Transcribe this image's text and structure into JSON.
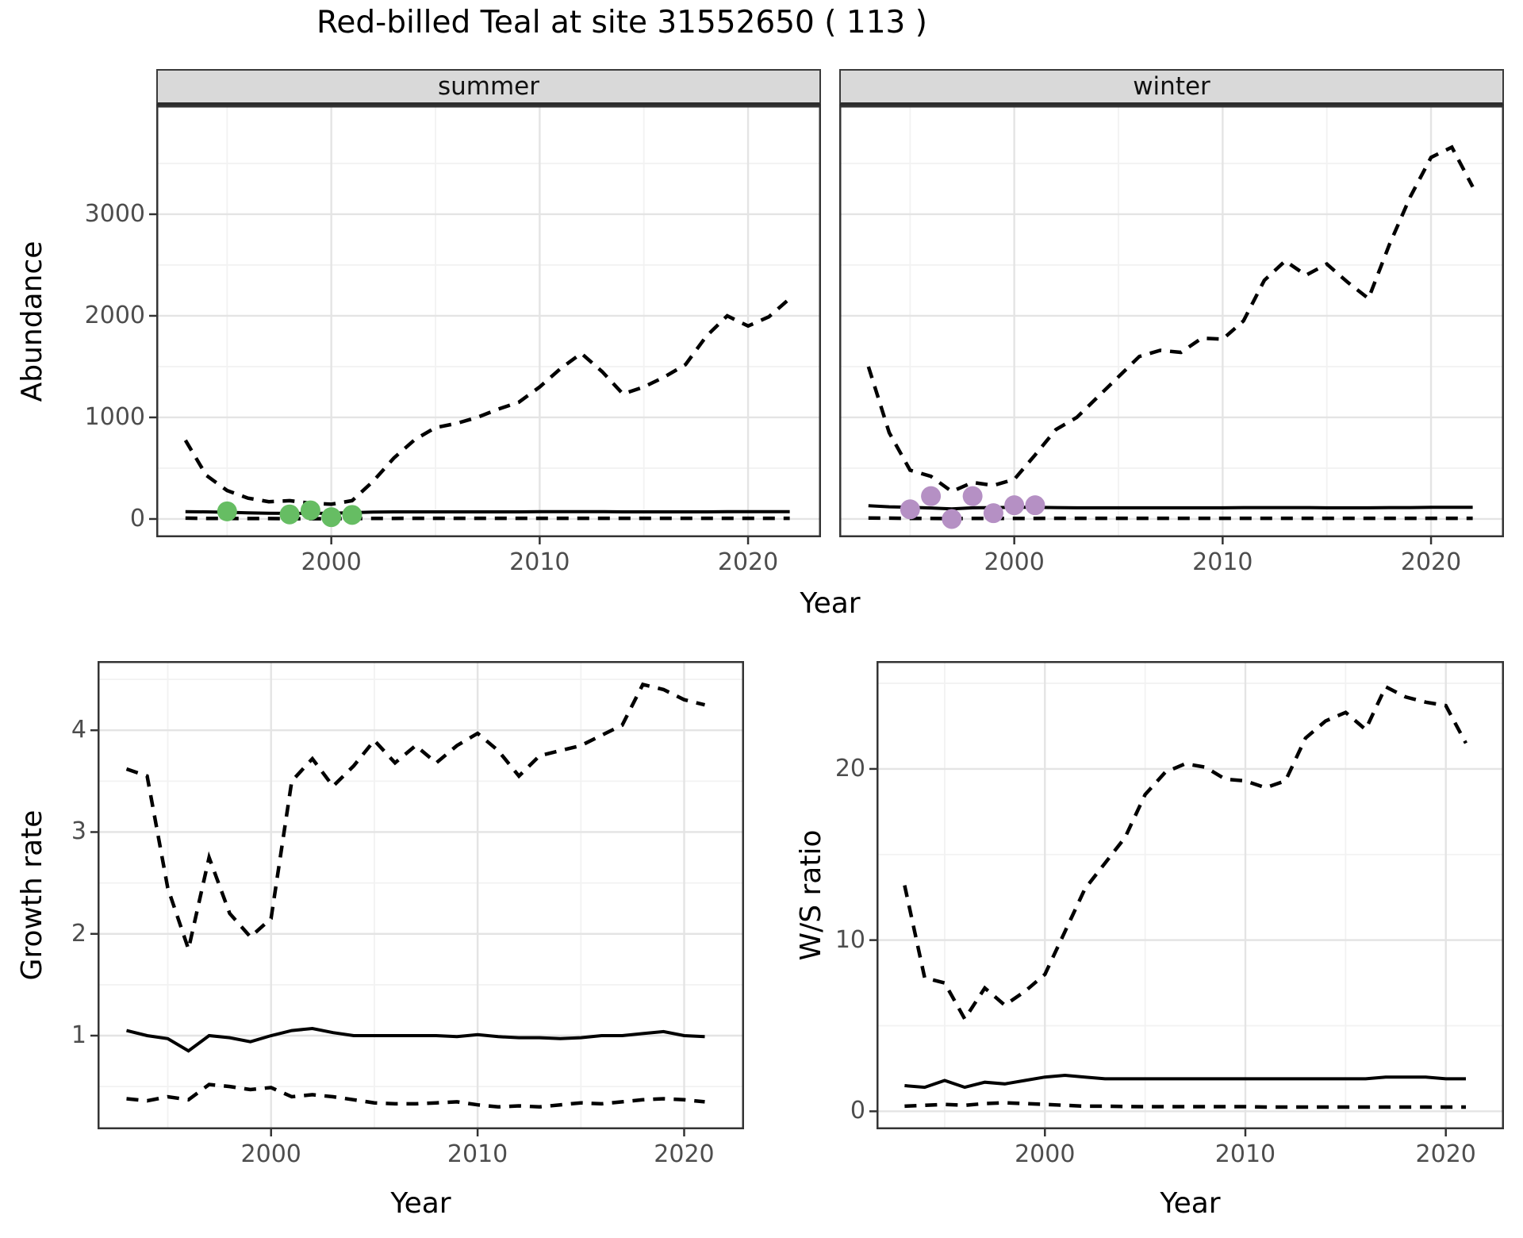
{
  "title": "Red-billed Teal at site 31552650 ( 113 )",
  "colors": {
    "line": "#000000",
    "strip_bg": "#d9d9d9",
    "grid_major": "#e4e4e4",
    "grid_minor": "#f2f2f2",
    "axis_text": "#4d4d4d",
    "panel_border": "#343434",
    "summer_point": "#66bd63",
    "winter_point": "#b590c4"
  },
  "top_row": {
    "ylabel": "Abundance",
    "xlabel": "Year"
  },
  "chart_data": [
    {
      "type": "line",
      "facet": "summer",
      "xlabel": "Year",
      "ylabel": "Abundance",
      "xlim": [
        1991.6,
        2023.5
      ],
      "ylim": [
        -180,
        4070
      ],
      "x_ticks": [
        2000,
        2010,
        2020
      ],
      "y_ticks": [
        0,
        1000,
        2000,
        3000
      ],
      "x": [
        1993,
        1994,
        1995,
        1996,
        1997,
        1998,
        1999,
        2000,
        2001,
        2002,
        2003,
        2004,
        2005,
        2006,
        2007,
        2008,
        2009,
        2010,
        2011,
        2012,
        2013,
        2014,
        2015,
        2016,
        2017,
        2018,
        2019,
        2020,
        2021,
        2022
      ],
      "series": [
        {
          "name": "upper-ci",
          "linetype": "dashed",
          "values": [
            775,
            430,
            280,
            205,
            170,
            180,
            155,
            145,
            180,
            370,
            600,
            780,
            900,
            940,
            1000,
            1080,
            1150,
            1300,
            1480,
            1630,
            1450,
            1230,
            1300,
            1400,
            1520,
            1800,
            2000,
            1900,
            1990,
            2170
          ]
        },
        {
          "name": "median",
          "linetype": "solid",
          "values": [
            72,
            70,
            66,
            60,
            57,
            55,
            55,
            57,
            62,
            68,
            70,
            70,
            70,
            70,
            70,
            70,
            70,
            72,
            72,
            72,
            72,
            70,
            70,
            70,
            70,
            70,
            72,
            72,
            72,
            72
          ]
        },
        {
          "name": "lower-ci",
          "linetype": "dashed",
          "values": [
            8,
            6,
            5,
            4,
            4,
            3,
            3,
            3,
            4,
            5,
            6,
            7,
            7,
            7,
            7,
            7,
            7,
            7,
            7,
            7,
            7,
            7,
            7,
            7,
            7,
            7,
            7,
            7,
            7,
            7
          ]
        }
      ],
      "points": {
        "name": "observed-count",
        "color": "#66bd63",
        "x": [
          1995,
          1998,
          1999,
          2000,
          2001
        ],
        "y": [
          75,
          45,
          85,
          18,
          40
        ]
      }
    },
    {
      "type": "line",
      "facet": "winter",
      "xlabel": "Year",
      "ylabel": "Abundance",
      "xlim": [
        1991.6,
        2023.5
      ],
      "ylim": [
        -180,
        4070
      ],
      "x_ticks": [
        2000,
        2010,
        2020
      ],
      "y_ticks": [
        0,
        1000,
        2000,
        3000
      ],
      "x": [
        1993,
        1994,
        1995,
        1996,
        1997,
        1998,
        1999,
        2000,
        2001,
        2002,
        2003,
        2004,
        2005,
        2006,
        2007,
        2008,
        2009,
        2010,
        2011,
        2012,
        2013,
        2014,
        2015,
        2016,
        2017,
        2018,
        2019,
        2020,
        2021,
        2022
      ],
      "series": [
        {
          "name": "upper-ci",
          "linetype": "dashed",
          "values": [
            1500,
            850,
            480,
            420,
            270,
            360,
            330,
            390,
            630,
            880,
            1000,
            1200,
            1400,
            1600,
            1660,
            1640,
            1780,
            1770,
            1950,
            2350,
            2540,
            2400,
            2510,
            2330,
            2170,
            2700,
            3170,
            3560,
            3660,
            3270
          ]
        },
        {
          "name": "median",
          "linetype": "solid",
          "values": [
            130,
            120,
            115,
            108,
            100,
            110,
            112,
            115,
            115,
            112,
            110,
            110,
            110,
            110,
            110,
            110,
            110,
            110,
            112,
            112,
            112,
            112,
            110,
            110,
            110,
            112,
            112,
            115,
            115,
            115
          ]
        },
        {
          "name": "lower-ci",
          "linetype": "dashed",
          "values": [
            10,
            8,
            6,
            5,
            4,
            5,
            5,
            6,
            6,
            7,
            7,
            7,
            7,
            7,
            7,
            7,
            7,
            7,
            7,
            7,
            7,
            7,
            7,
            7,
            7,
            7,
            7,
            7,
            7,
            7
          ]
        }
      ],
      "points": {
        "name": "observed-count",
        "color": "#b590c4",
        "x": [
          1995,
          1996,
          1997,
          1998,
          1999,
          2000,
          2001
        ],
        "y": [
          95,
          225,
          0,
          225,
          57,
          135,
          135
        ]
      }
    },
    {
      "type": "line",
      "facet": "",
      "xlabel": "Year",
      "ylabel": "Growth rate",
      "xlim": [
        1991.6,
        2022.9
      ],
      "ylim": [
        0.08,
        4.68
      ],
      "x_ticks": [
        2000,
        2010,
        2020
      ],
      "y_ticks": [
        1,
        2,
        3,
        4
      ],
      "x": [
        1993,
        1994,
        1995,
        1996,
        1997,
        1998,
        1999,
        2000,
        2001,
        2002,
        2003,
        2004,
        2005,
        2006,
        2007,
        2008,
        2009,
        2010,
        2011,
        2012,
        2013,
        2014,
        2015,
        2016,
        2017,
        2018,
        2019,
        2020,
        2021
      ],
      "series": [
        {
          "name": "upper-ci",
          "linetype": "dashed",
          "values": [
            3.62,
            3.55,
            2.45,
            1.85,
            2.75,
            2.2,
            1.97,
            2.15,
            3.5,
            3.72,
            3.45,
            3.65,
            3.9,
            3.68,
            3.85,
            3.68,
            3.85,
            3.97,
            3.8,
            3.55,
            3.75,
            3.8,
            3.85,
            3.95,
            4.05,
            4.45,
            4.4,
            4.3,
            4.25
          ]
        },
        {
          "name": "median",
          "linetype": "solid",
          "values": [
            1.05,
            1.0,
            0.97,
            0.85,
            1.0,
            0.98,
            0.94,
            1.0,
            1.05,
            1.07,
            1.03,
            1.0,
            1.0,
            1.0,
            1.0,
            1.0,
            0.99,
            1.01,
            0.99,
            0.98,
            0.98,
            0.97,
            0.98,
            1.0,
            1.0,
            1.02,
            1.04,
            1.0,
            0.99
          ]
        },
        {
          "name": "lower-ci",
          "linetype": "dashed",
          "values": [
            0.38,
            0.36,
            0.4,
            0.37,
            0.52,
            0.5,
            0.47,
            0.49,
            0.4,
            0.42,
            0.4,
            0.37,
            0.34,
            0.33,
            0.33,
            0.34,
            0.35,
            0.32,
            0.3,
            0.31,
            0.3,
            0.32,
            0.34,
            0.33,
            0.35,
            0.37,
            0.38,
            0.37,
            0.35
          ]
        }
      ],
      "points": null
    },
    {
      "type": "line",
      "facet": "",
      "xlabel": "Year",
      "ylabel": "W/S ratio",
      "xlim": [
        1991.6,
        2022.9
      ],
      "ylim": [
        -1.05,
        26.3
      ],
      "x_ticks": [
        2000,
        2010,
        2020
      ],
      "y_ticks": [
        0,
        10,
        20
      ],
      "x": [
        1993,
        1994,
        1995,
        1996,
        1997,
        1998,
        1999,
        2000,
        2001,
        2002,
        2003,
        2004,
        2005,
        2006,
        2007,
        2008,
        2009,
        2010,
        2011,
        2012,
        2013,
        2014,
        2015,
        2016,
        2017,
        2018,
        2019,
        2020,
        2021
      ],
      "series": [
        {
          "name": "upper-ci",
          "linetype": "dashed",
          "values": [
            13.2,
            7.8,
            7.5,
            5.4,
            7.2,
            6.2,
            7.0,
            8.0,
            10.5,
            13.0,
            14.5,
            16.0,
            18.5,
            19.8,
            20.3,
            20.1,
            19.4,
            19.3,
            18.9,
            19.3,
            21.8,
            22.8,
            23.3,
            22.3,
            24.8,
            24.2,
            23.9,
            23.7,
            21.5
          ]
        },
        {
          "name": "median",
          "linetype": "solid",
          "values": [
            1.5,
            1.4,
            1.8,
            1.4,
            1.7,
            1.6,
            1.8,
            2.0,
            2.1,
            2.0,
            1.9,
            1.9,
            1.9,
            1.9,
            1.9,
            1.9,
            1.9,
            1.9,
            1.9,
            1.9,
            1.9,
            1.9,
            1.9,
            1.9,
            2.0,
            2.0,
            2.0,
            1.9,
            1.9
          ]
        },
        {
          "name": "lower-ci",
          "linetype": "dashed",
          "values": [
            0.3,
            0.35,
            0.4,
            0.35,
            0.45,
            0.5,
            0.45,
            0.4,
            0.35,
            0.3,
            0.3,
            0.28,
            0.27,
            0.27,
            0.27,
            0.27,
            0.27,
            0.27,
            0.25,
            0.25,
            0.25,
            0.25,
            0.25,
            0.25,
            0.25,
            0.25,
            0.25,
            0.25,
            0.25
          ]
        }
      ],
      "points": null
    }
  ]
}
